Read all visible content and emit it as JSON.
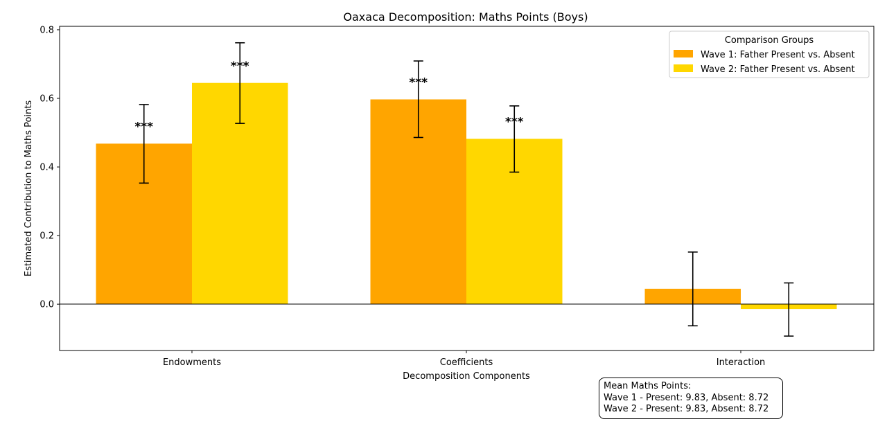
{
  "chart_data": {
    "type": "bar",
    "title": "Oaxaca Decomposition: Maths Points (Boys)",
    "xlabel": "Decomposition Components",
    "ylabel": "Estimated Contribution to Maths Points",
    "categories": [
      "Endowments",
      "Coefficients",
      "Interaction"
    ],
    "ylim": [
      -0.135,
      0.81
    ],
    "yticks": [
      0.0,
      0.2,
      0.4,
      0.6,
      0.8
    ],
    "ytick_labels": [
      "0.0",
      "0.2",
      "0.4",
      "0.6",
      "0.8"
    ],
    "series": [
      {
        "name": "Wave 1: Father Present vs. Absent",
        "color": "#ffa500",
        "values": [
          0.468,
          0.597,
          0.045
        ],
        "error_low": [
          0.353,
          0.486,
          -0.063
        ],
        "error_high": [
          0.582,
          0.709,
          0.152
        ],
        "significance": [
          "***",
          "***",
          ""
        ]
      },
      {
        "name": "Wave 2: Father Present vs. Absent",
        "color": "#ffd700",
        "values": [
          0.645,
          0.482,
          -0.014
        ],
        "error_low": [
          0.527,
          0.385,
          -0.093
        ],
        "error_high": [
          0.762,
          0.578,
          0.062
        ],
        "significance": [
          "***",
          "***",
          ""
        ]
      }
    ],
    "legend": {
      "title": "Comparison Groups",
      "placement": "top-right"
    },
    "grid": false,
    "annotation": {
      "lines": [
        "Mean Maths Points:",
        "Wave 1 - Present: 9.83, Absent: 8.72",
        "Wave 2 - Present: 9.83, Absent: 8.72"
      ],
      "placement": "bottom-right"
    }
  }
}
